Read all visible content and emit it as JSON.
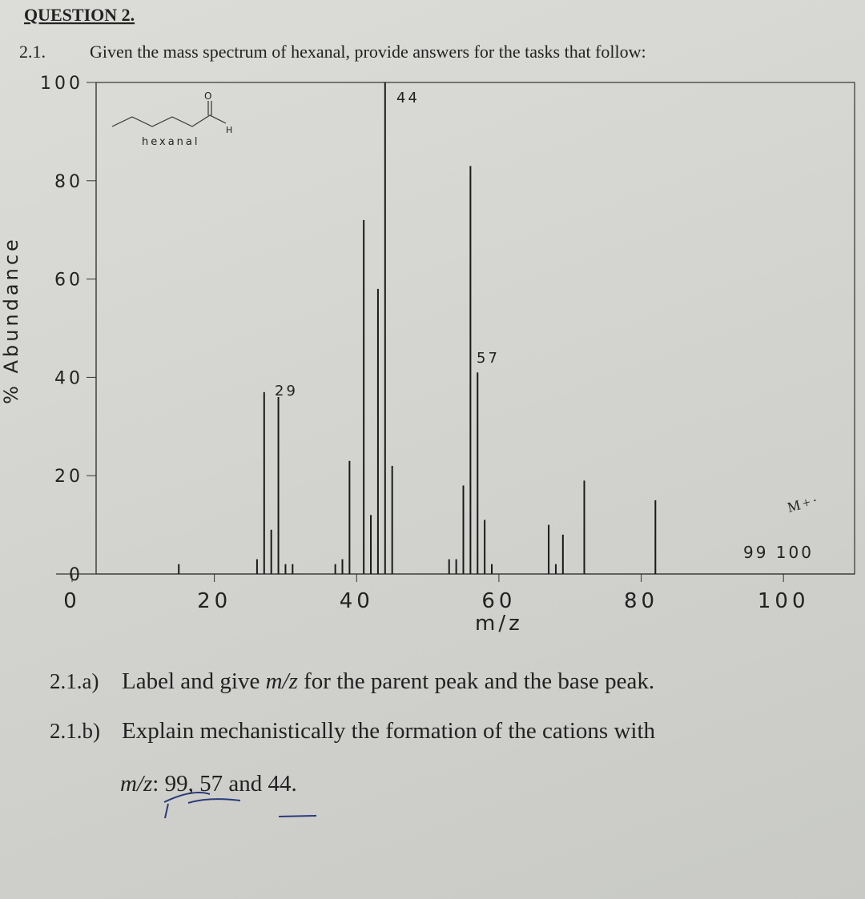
{
  "header": {
    "title": "QUESTION 2."
  },
  "question": {
    "number": "2.1.",
    "text": "Given the mass spectrum of hexanal, provide answers for the tasks that follow:"
  },
  "chart_data": {
    "type": "bar",
    "x_label": "m/z",
    "y_label": "% Abundance",
    "annotations": [
      "44",
      "57",
      "29",
      "99 100",
      "hexanal",
      "O",
      "H",
      "M+·"
    ],
    "x": [
      15,
      26,
      27,
      28,
      29,
      30,
      31,
      37,
      38,
      39,
      41,
      42,
      43,
      44,
      45,
      53,
      54,
      55,
      56,
      57,
      58,
      59,
      67,
      68,
      69,
      72,
      82
    ],
    "values": [
      2,
      3,
      37,
      9,
      36,
      2,
      2,
      2,
      3,
      23,
      72,
      12,
      58,
      100,
      22,
      3,
      3,
      18,
      83,
      41,
      11,
      2,
      10,
      2,
      8,
      19,
      15
    ],
    "color": "#1a1a1a",
    "xlim": [
      0,
      110
    ],
    "xticks": [
      0,
      20,
      40,
      60,
      80,
      100
    ],
    "ylim": [
      0,
      100
    ],
    "yticks": [
      0,
      20,
      40,
      60,
      80,
      100
    ]
  },
  "tasks": [
    {
      "number": "2.1.a)",
      "parts": [
        "Label and give ",
        "m/z",
        " for the parent peak and the base peak."
      ]
    },
    {
      "number": "2.1.b)",
      "parts": [
        "Explain mechanistically the formation of the cations with"
      ]
    },
    {
      "number": "",
      "parts": [
        "m/z",
        ": 99, 57 and 44."
      ]
    }
  ]
}
